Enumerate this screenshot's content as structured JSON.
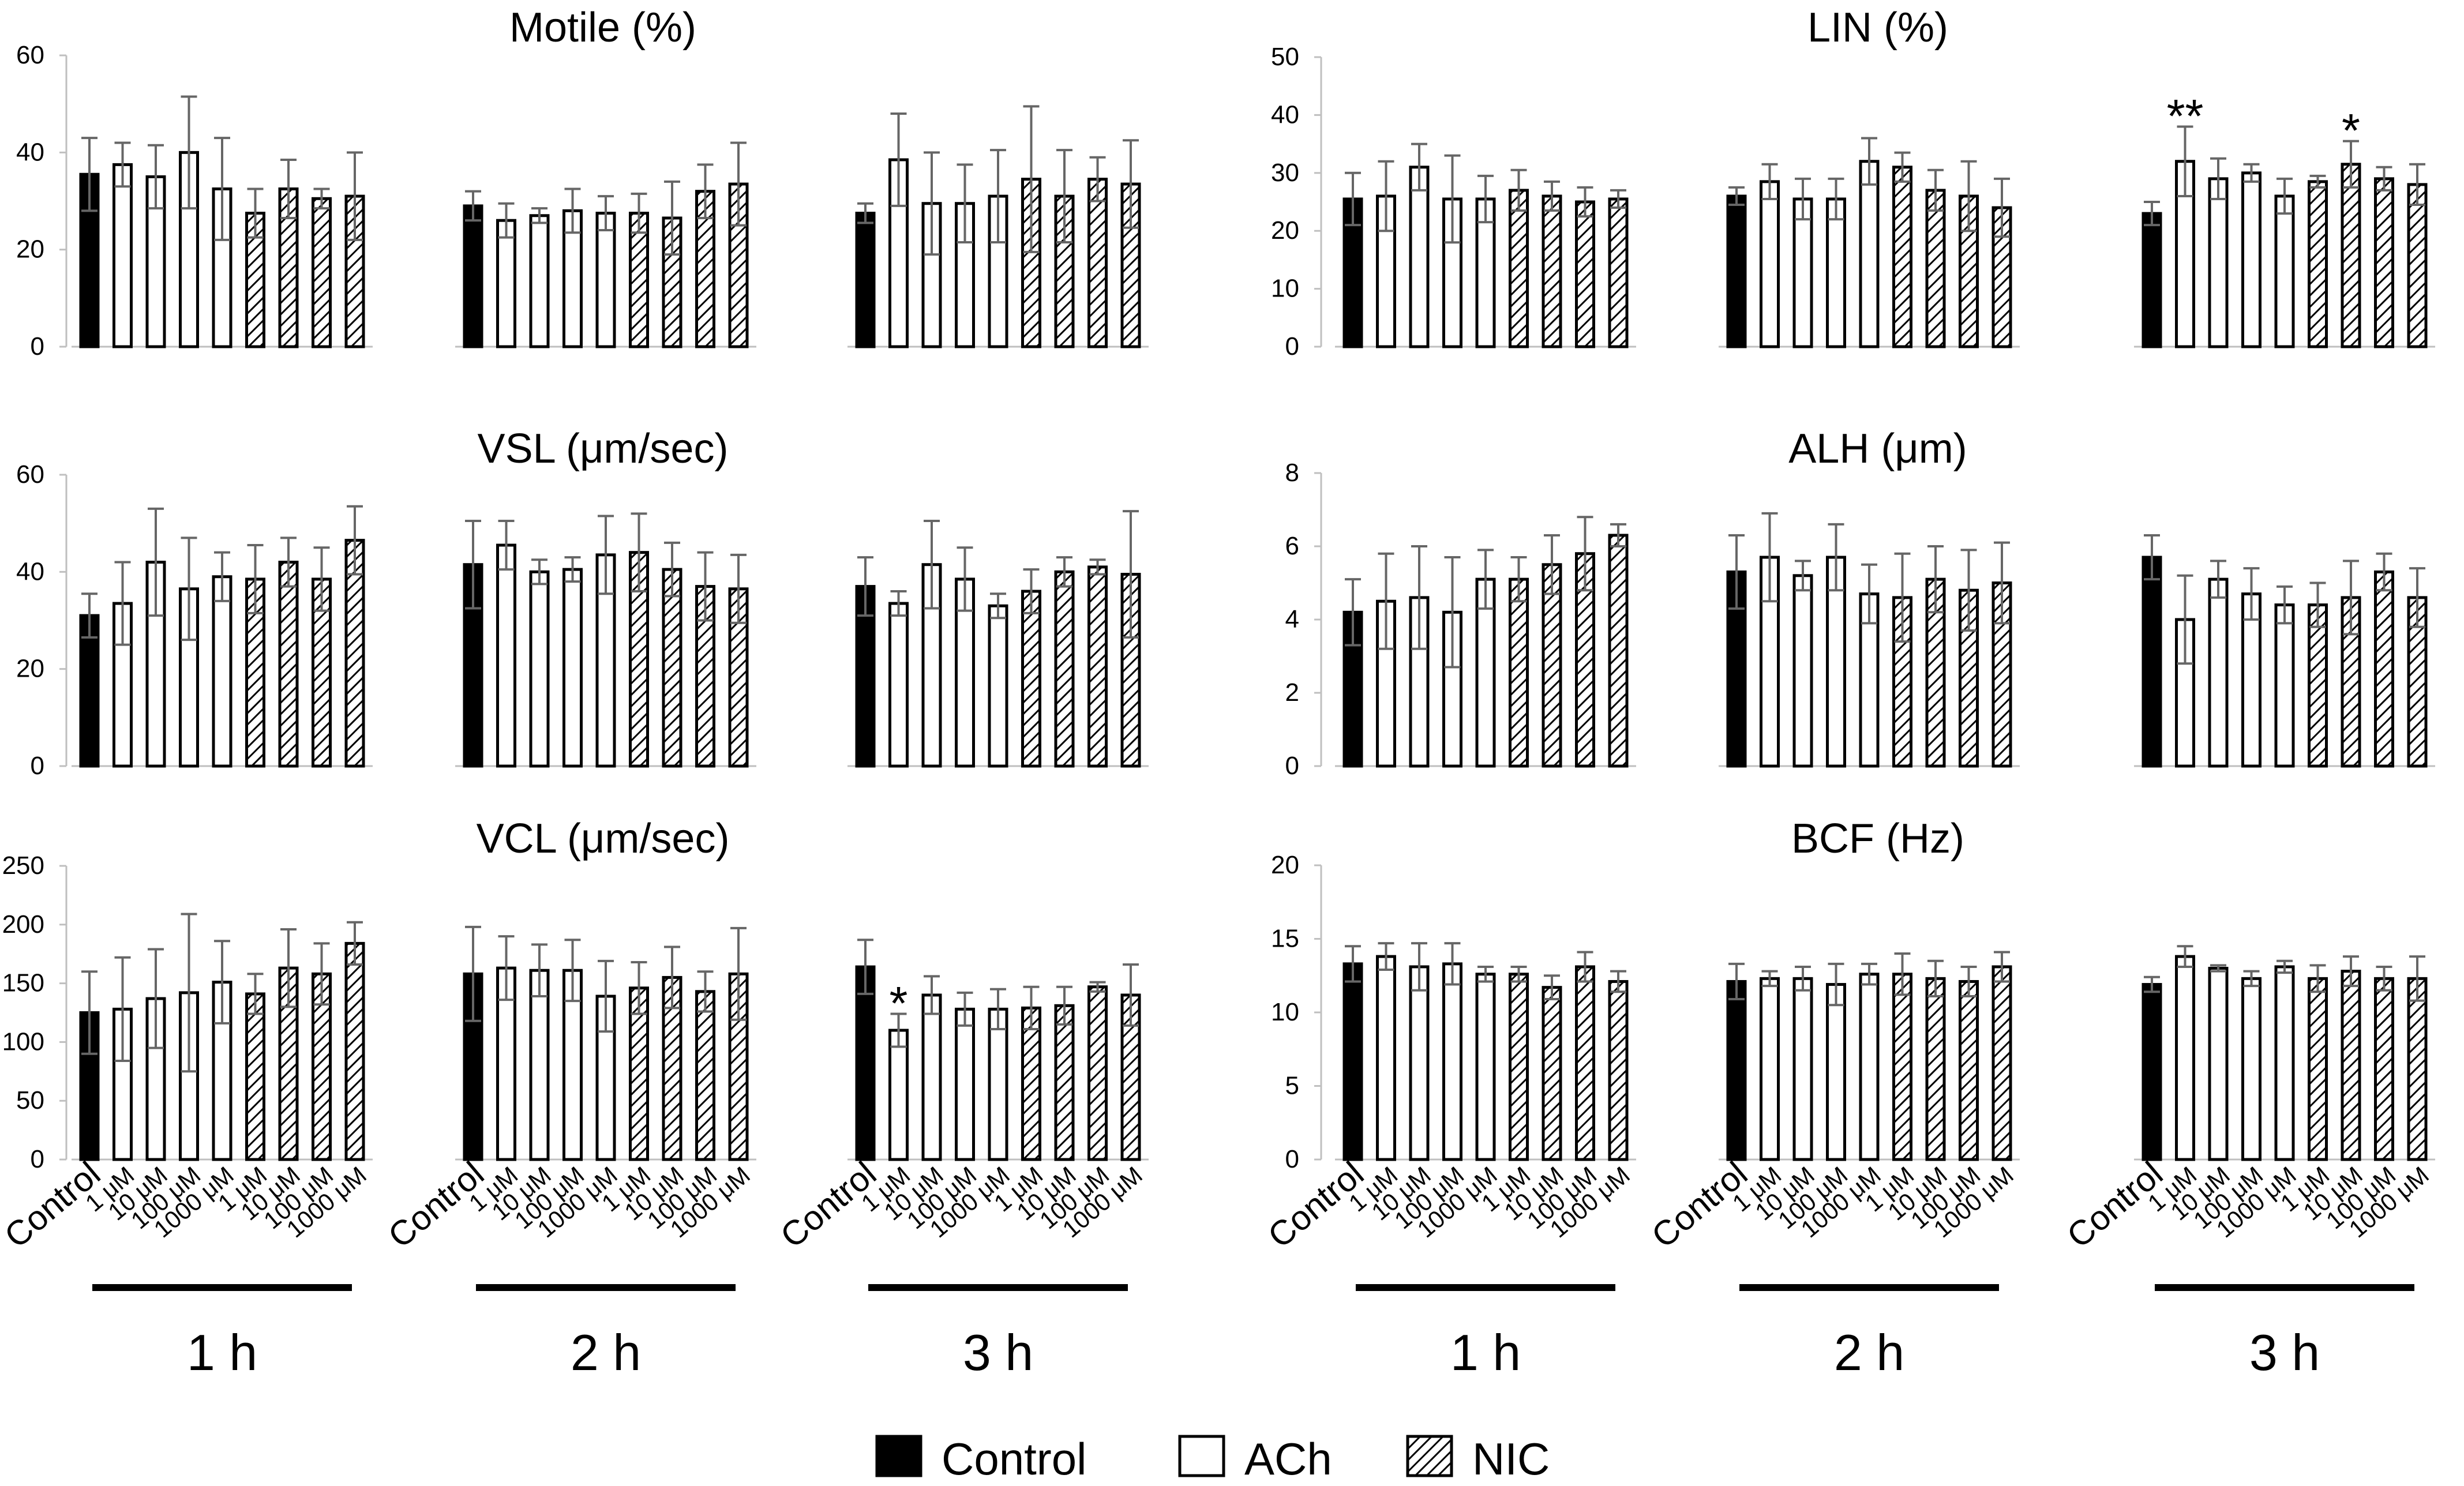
{
  "colors": {
    "control": "#000000",
    "ach": "#ffffff",
    "nic_hatch": "#000000",
    "error": "#666666",
    "axis": "#bfbfbf"
  },
  "legend": {
    "items": [
      {
        "label": "Control",
        "kind": "control"
      },
      {
        "label": "ACh",
        "kind": "ach"
      },
      {
        "label": "NIC",
        "kind": "nic"
      }
    ]
  },
  "chart_data": [
    {
      "type": "bar",
      "title": "Motile (%)",
      "ylim": [
        0,
        60
      ],
      "yticks": [
        0,
        20,
        40,
        60
      ],
      "categories": [
        "Control",
        "1 μM",
        "10 μM",
        "100 μM",
        "1000 μM",
        "1 μM",
        "10 μM",
        "100 μM",
        "1000 μM"
      ],
      "groups": [
        {
          "time": "1 h",
          "values": [
            35.5,
            37.5,
            35,
            40,
            32.5,
            27.5,
            32.5,
            30.5,
            31
          ],
          "errors": [
            7.5,
            4.5,
            6.5,
            11.5,
            10.5,
            5,
            6,
            2,
            9
          ]
        },
        {
          "time": "2 h",
          "values": [
            29,
            26,
            27,
            28,
            27.5,
            27.5,
            26.5,
            32,
            33.5
          ],
          "errors": [
            3,
            3.5,
            1.5,
            4.5,
            3.5,
            4,
            7.5,
            5.5,
            8.5
          ]
        },
        {
          "time": "3 h",
          "values": [
            27.5,
            38.5,
            29.5,
            29.5,
            31,
            34.5,
            31,
            34.5,
            33.5
          ],
          "errors": [
            2,
            9.5,
            10.5,
            8,
            9.5,
            15,
            9.5,
            4.5,
            9
          ]
        }
      ],
      "significance": []
    },
    {
      "type": "bar",
      "title": "LIN (%)",
      "ylim": [
        0,
        50
      ],
      "yticks": [
        0,
        10,
        20,
        30,
        40,
        50
      ],
      "categories": [
        "Control",
        "1 μM",
        "10 μM",
        "100 μM",
        "1000 μM",
        "1 μM",
        "10 μM",
        "100 μM",
        "1000 μM"
      ],
      "groups": [
        {
          "time": "1 h",
          "values": [
            25.5,
            26,
            31,
            25.5,
            25.5,
            27,
            26,
            25,
            25.5
          ],
          "errors": [
            4.5,
            6,
            4,
            7.5,
            4,
            3.5,
            2.5,
            2.5,
            1.5
          ]
        },
        {
          "time": "2 h",
          "values": [
            26,
            28.5,
            25.5,
            25.5,
            32,
            31,
            27,
            26,
            24
          ],
          "errors": [
            1.5,
            3,
            3.5,
            3.5,
            4,
            2.5,
            3.5,
            6,
            5
          ]
        },
        {
          "time": "3 h",
          "values": [
            23,
            32,
            29,
            30,
            26,
            28.5,
            31.5,
            29,
            28
          ],
          "errors": [
            2,
            6,
            3.5,
            1.5,
            3,
            1,
            4,
            2,
            3.5
          ]
        }
      ],
      "significance": [
        {
          "group": 2,
          "bar": 1,
          "label": "**"
        },
        {
          "group": 2,
          "bar": 6,
          "label": "*"
        }
      ]
    },
    {
      "type": "bar",
      "title": "VSL (μm/sec)",
      "ylim": [
        0,
        60
      ],
      "yticks": [
        0,
        20,
        40,
        60
      ],
      "categories": [
        "Control",
        "1 μM",
        "10 μM",
        "100 μM",
        "1000 μM",
        "1 μM",
        "10 μM",
        "100 μM",
        "1000 μM"
      ],
      "groups": [
        {
          "time": "1 h",
          "values": [
            31,
            33.5,
            42,
            36.5,
            39,
            38.5,
            42,
            38.5,
            46.5
          ],
          "errors": [
            4.5,
            8.5,
            11,
            10.5,
            5,
            7,
            5,
            6.5,
            7
          ]
        },
        {
          "time": "2 h",
          "values": [
            41.5,
            45.5,
            40,
            40.5,
            43.5,
            44,
            40.5,
            37,
            36.5
          ],
          "errors": [
            9,
            5,
            2.5,
            2.5,
            8,
            8,
            5.5,
            7,
            7
          ]
        },
        {
          "time": "3 h",
          "values": [
            37,
            33.5,
            41.5,
            38.5,
            33,
            36,
            40,
            41,
            39.5
          ],
          "errors": [
            6,
            2.5,
            9,
            6.5,
            2.5,
            4.5,
            3,
            1.5,
            13
          ]
        }
      ],
      "significance": []
    },
    {
      "type": "bar",
      "title": "ALH (μm)",
      "ylim": [
        0,
        8
      ],
      "yticks": [
        0,
        2,
        4,
        6,
        8
      ],
      "categories": [
        "Control",
        "1 μM",
        "10 μM",
        "100 μM",
        "1000 μM",
        "1 μM",
        "10 μM",
        "100 μM",
        "1000 μM"
      ],
      "groups": [
        {
          "time": "1 h",
          "values": [
            4.2,
            4.5,
            4.6,
            4.2,
            5.1,
            5.1,
            5.5,
            5.8,
            6.3
          ],
          "errors": [
            0.9,
            1.3,
            1.4,
            1.5,
            0.8,
            0.6,
            0.8,
            1,
            0.3
          ]
        },
        {
          "time": "2 h",
          "values": [
            5.3,
            5.7,
            5.2,
            5.7,
            4.7,
            4.6,
            5.1,
            4.8,
            5
          ],
          "errors": [
            1,
            1.2,
            0.4,
            0.9,
            0.8,
            1.2,
            0.9,
            1.1,
            1.1
          ]
        },
        {
          "time": "3 h",
          "values": [
            5.7,
            4,
            5.1,
            4.7,
            4.4,
            4.4,
            4.6,
            5.3,
            4.6
          ],
          "errors": [
            0.6,
            1.2,
            0.5,
            0.7,
            0.5,
            0.6,
            1,
            0.5,
            0.8
          ]
        }
      ],
      "significance": []
    },
    {
      "type": "bar",
      "title": "VCL (μm/sec)",
      "ylim": [
        0,
        250
      ],
      "yticks": [
        0,
        50,
        100,
        150,
        200,
        250
      ],
      "categories": [
        "Control",
        "1 μM",
        "10 μM",
        "100 μM",
        "1000 μM",
        "1 μM",
        "10 μM",
        "100 μM",
        "1000 μM"
      ],
      "groups": [
        {
          "time": "1 h",
          "values": [
            125,
            128,
            137,
            142,
            151,
            141,
            163,
            158,
            184
          ],
          "errors": [
            35,
            44,
            42,
            67,
            35,
            17,
            33,
            26,
            18
          ]
        },
        {
          "time": "2 h",
          "values": [
            158,
            163,
            161,
            161,
            139,
            146,
            155,
            143,
            158
          ],
          "errors": [
            40,
            27,
            22,
            26,
            30,
            22,
            26,
            17,
            39
          ]
        },
        {
          "time": "3 h",
          "values": [
            164,
            110,
            140,
            128,
            128,
            129,
            131,
            147,
            140
          ],
          "errors": [
            23,
            14,
            16,
            14,
            17,
            18,
            16,
            4,
            26
          ]
        }
      ],
      "significance": [
        {
          "group": 2,
          "bar": 1,
          "label": "*"
        }
      ]
    },
    {
      "type": "bar",
      "title": "BCF (Hz)",
      "ylim": [
        0,
        20
      ],
      "yticks": [
        0,
        5,
        10,
        15,
        20
      ],
      "categories": [
        "Control",
        "1 μM",
        "10 μM",
        "100 μM",
        "1000 μM",
        "1 μM",
        "10 μM",
        "100 μM",
        "1000 μM"
      ],
      "groups": [
        {
          "time": "1 h",
          "values": [
            13.3,
            13.8,
            13.1,
            13.3,
            12.6,
            12.6,
            11.7,
            13.1,
            12.1
          ],
          "errors": [
            1.2,
            0.9,
            1.6,
            1.4,
            0.5,
            0.5,
            0.8,
            1,
            0.7
          ]
        },
        {
          "time": "2 h",
          "values": [
            12.1,
            12.3,
            12.3,
            11.9,
            12.6,
            12.6,
            12.3,
            12.1,
            13.1
          ],
          "errors": [
            1.2,
            0.5,
            0.8,
            1.4,
            0.7,
            1.4,
            1.2,
            1,
            1
          ]
        },
        {
          "time": "3 h",
          "values": [
            11.9,
            13.8,
            13,
            12.3,
            13.1,
            12.3,
            12.8,
            12.3,
            12.3
          ],
          "errors": [
            0.5,
            0.7,
            0.2,
            0.5,
            0.4,
            0.9,
            1,
            0.8,
            1.5
          ]
        }
      ],
      "significance": []
    }
  ]
}
